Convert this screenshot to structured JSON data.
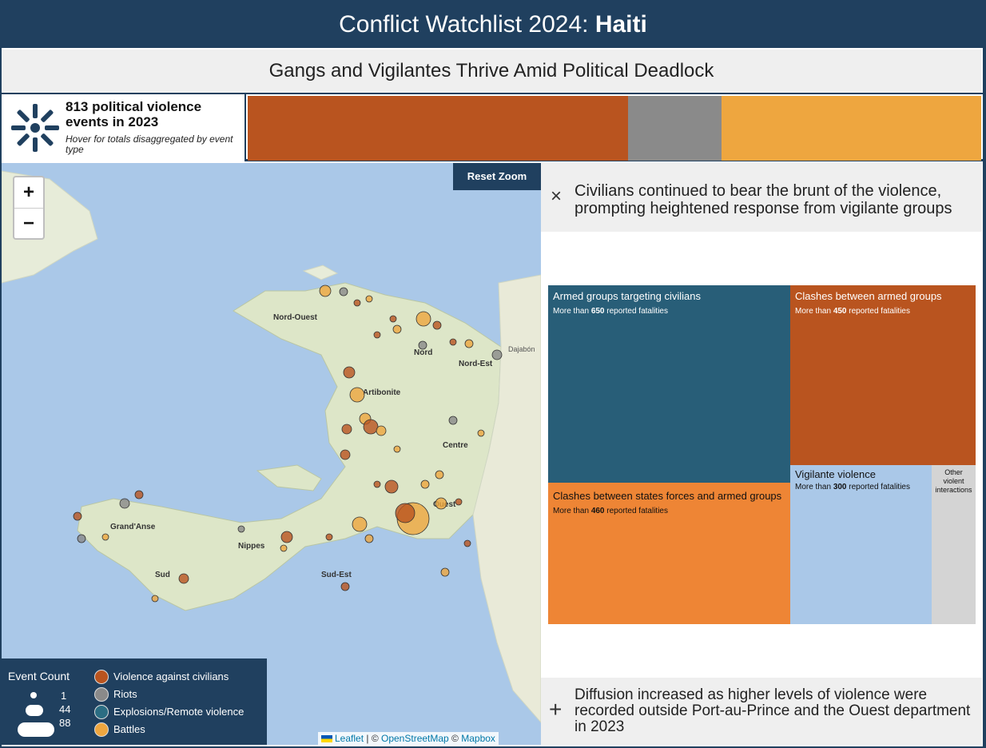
{
  "title": {
    "prefix": "Conflict Watchlist 2024: ",
    "country": "Haiti"
  },
  "subtitle": "Gangs and Vigilantes Thrive Amid Political Deadlock",
  "stats": {
    "title": "813 political violence events in 2023",
    "note": "Hover for totals disaggregated by event type",
    "icon": "acled-logo-icon",
    "segments": [
      {
        "name": "Violence against civilians",
        "color": "#b9541f"
      },
      {
        "name": "Riots",
        "color": "#8a8a8a"
      },
      {
        "name": "Battles",
        "color": "#eea63f"
      }
    ]
  },
  "map": {
    "zoom_in": "+",
    "zoom_out": "−",
    "reset_zoom": "Reset Zoom",
    "place_labels": [
      "Nord-Ouest",
      "Nord",
      "Nord-Est",
      "Artibonite",
      "Centre",
      "Grand'Anse",
      "Nippes",
      "Sud",
      "Sud-Est",
      "Ouest",
      "Dajabón"
    ],
    "legend": {
      "title": "Event Count",
      "sizes": [
        "1",
        "44",
        "88"
      ],
      "types": [
        {
          "label": "Violence against civilians",
          "color": "#b9541f"
        },
        {
          "label": "Riots",
          "color": "#8a8a8a"
        },
        {
          "label": "Explosions/Remote violence",
          "color": "#2b6d83"
        },
        {
          "label": "Battles",
          "color": "#eea63f"
        }
      ]
    },
    "attribution": {
      "leaflet": "Leaflet",
      "sep1": " | © ",
      "osm": "OpenStreetMap",
      "sep2": " © ",
      "mapbox": "Mapbox"
    }
  },
  "panel": {
    "close_icon": "×",
    "heading": "Civilians continued to bear the brunt of the violence, prompting heightened response from vigilante groups",
    "treemap": [
      {
        "title": "Armed groups targeting civilians",
        "pre": "More than ",
        "num": "650",
        "post": " reported fatalities",
        "color": "#285e78"
      },
      {
        "title": "Clashes between armed groups",
        "pre": "More than ",
        "num": "450",
        "post": " reported fatalities",
        "color": "#b9541f"
      },
      {
        "title": "Clashes between states forces and armed groups",
        "pre": "More than ",
        "num": "460",
        "post": " reported fatalities",
        "color": "#ee8535"
      },
      {
        "title": "Vigilante violence",
        "pre": "More than ",
        "num": "300",
        "post": " reported fatalities",
        "color": "#aac8e8"
      },
      {
        "title": "Other violent interactions",
        "color": "#d4d4d4"
      }
    ],
    "expand_icon": "+",
    "footer": "Diffusion increased as higher levels of violence were recorded outside Port-au-Prince and the Ouest department in 2023"
  }
}
